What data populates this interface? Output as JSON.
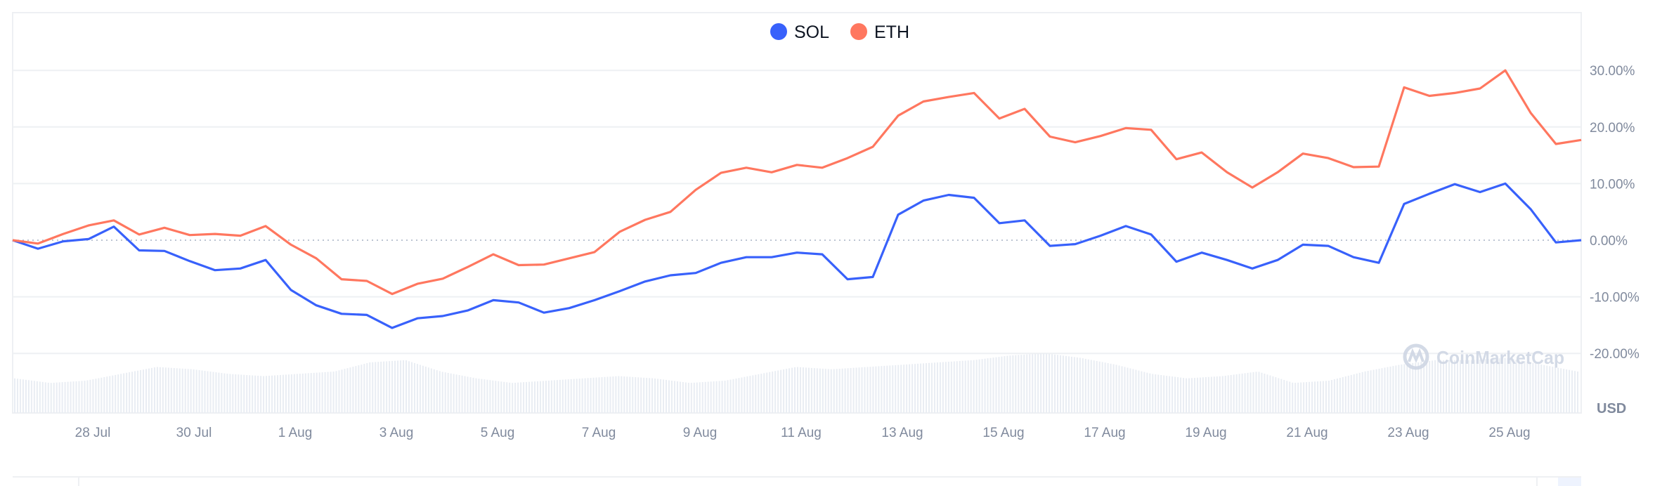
{
  "chart_data": {
    "type": "line",
    "title": "",
    "xlabel": "",
    "ylabel": "",
    "y_axis_unit": "USD",
    "ylim": [
      -20,
      40
    ],
    "y_ticks": [
      "30.00%",
      "20.00%",
      "10.00%",
      "0.00%",
      "-10.00%",
      "-20.00%"
    ],
    "y_tick_values": [
      30,
      20,
      10,
      0,
      -10,
      -20
    ],
    "x_ticks": [
      "28 Jul",
      "30 Jul",
      "1 Aug",
      "3 Aug",
      "5 Aug",
      "7 Aug",
      "9 Aug",
      "11 Aug",
      "13 Aug",
      "15 Aug",
      "17 Aug",
      "19 Aug",
      "21 Aug",
      "23 Aug",
      "25 Aug"
    ],
    "grid": true,
    "zero_line": "dotted",
    "legend_placement": "top-center",
    "watermark": "CoinMarketCap",
    "x": [
      "Jul 26 10:00",
      "Jul 26 22:00",
      "Jul 27 10:00",
      "Jul 27 22:00",
      "Jul 28 10:00",
      "Jul 28 22:00",
      "Jul 29 10:00",
      "Jul 29 22:00",
      "Jul 30 10:00",
      "Jul 30 22:00",
      "Jul 31 10:00",
      "Jul 31 22:00",
      "Aug 1 10:00",
      "Aug 1 22:00",
      "Aug 2 10:00",
      "Aug 2 22:00",
      "Aug 3 10:00",
      "Aug 3 22:00",
      "Aug 4 10:00",
      "Aug 4 22:00",
      "Aug 5 10:00",
      "Aug 5 22:00",
      "Aug 6 10:00",
      "Aug 6 22:00",
      "Aug 7 10:00",
      "Aug 7 22:00",
      "Aug 8 10:00",
      "Aug 8 22:00",
      "Aug 9 10:00",
      "Aug 9 22:00",
      "Aug 10 10:00",
      "Aug 10 22:00",
      "Aug 11 10:00",
      "Aug 11 22:00",
      "Aug 12 10:00",
      "Aug 12 22:00",
      "Aug 13 10:00",
      "Aug 13 22:00",
      "Aug 14 10:00",
      "Aug 14 22:00",
      "Aug 15 10:00",
      "Aug 15 22:00",
      "Aug 16 10:00",
      "Aug 16 22:00",
      "Aug 17 10:00",
      "Aug 17 22:00",
      "Aug 18 10:00",
      "Aug 18 22:00",
      "Aug 19 10:00",
      "Aug 19 22:00",
      "Aug 20 10:00",
      "Aug 20 22:00",
      "Aug 21 10:00",
      "Aug 21 22:00",
      "Aug 22 10:00",
      "Aug 22 22:00",
      "Aug 23 10:00",
      "Aug 23 22:00",
      "Aug 24 10:00",
      "Aug 24 22:00",
      "Aug 25 10:00",
      "Aug 25 22:00",
      "Aug 26 10:00"
    ],
    "series": [
      {
        "name": "SOL",
        "color": "#3861fb",
        "values": [
          0,
          -1.5,
          -0.2,
          0.2,
          2.4,
          -1.8,
          -1.9,
          -3.7,
          -5.3,
          -5.0,
          -3.5,
          -8.8,
          -11.5,
          -13.0,
          -13.2,
          -15.5,
          -13.8,
          -13.4,
          -12.4,
          -10.6,
          -11.0,
          -12.8,
          -12.0,
          -10.6,
          -9.0,
          -7.3,
          -6.2,
          -5.8,
          -4.0,
          -3.0,
          -3.0,
          -2.2,
          -2.5,
          -6.9,
          -6.5,
          4.5,
          7.0,
          8.0,
          7.5,
          3.0,
          3.5,
          -1.0,
          -0.7,
          0.8,
          2.5,
          1.0,
          -3.8,
          -2.2,
          -3.5,
          -5.0,
          -3.5,
          -0.8,
          -1.0,
          -3.0,
          -4.0,
          6.4,
          8.2,
          9.9,
          8.5,
          10.0,
          5.5,
          -0.4,
          0
        ]
      },
      {
        "name": "ETH",
        "color": "#ff775f",
        "values": [
          0,
          -0.6,
          1.1,
          2.6,
          3.5,
          1.0,
          2.2,
          0.9,
          1.1,
          0.8,
          2.5,
          -0.8,
          -3.2,
          -6.9,
          -7.2,
          -9.5,
          -7.7,
          -6.8,
          -4.7,
          -2.5,
          -4.4,
          -4.3,
          -3.2,
          -2.1,
          1.5,
          3.6,
          5.0,
          8.9,
          11.9,
          12.8,
          12.0,
          13.3,
          12.8,
          14.5,
          16.5,
          22.0,
          24.5,
          25.3,
          26.0,
          21.5,
          23.2,
          18.3,
          17.3,
          18.4,
          19.8,
          19.5,
          14.3,
          15.5,
          12.0,
          9.3,
          12.0,
          15.3,
          14.5,
          12.9,
          13.0,
          27.0,
          25.5,
          26.0,
          26.8,
          30.0,
          22.5,
          17.0,
          17.7
        ]
      }
    ],
    "volume_relative": [
      0.45,
      0.35,
      0.4,
      0.55,
      0.7,
      0.65,
      0.55,
      0.5,
      0.55,
      0.6,
      0.8,
      0.85,
      0.6,
      0.45,
      0.35,
      0.4,
      0.45,
      0.5,
      0.45,
      0.35,
      0.4,
      0.55,
      0.7,
      0.65,
      0.7,
      0.75,
      0.8,
      0.85,
      0.95,
      1.0,
      0.9,
      0.75,
      0.55,
      0.45,
      0.5,
      0.6,
      0.35,
      0.4,
      0.6,
      0.75,
      0.85,
      0.85,
      0.9,
      0.75,
      0.6
    ]
  }
}
